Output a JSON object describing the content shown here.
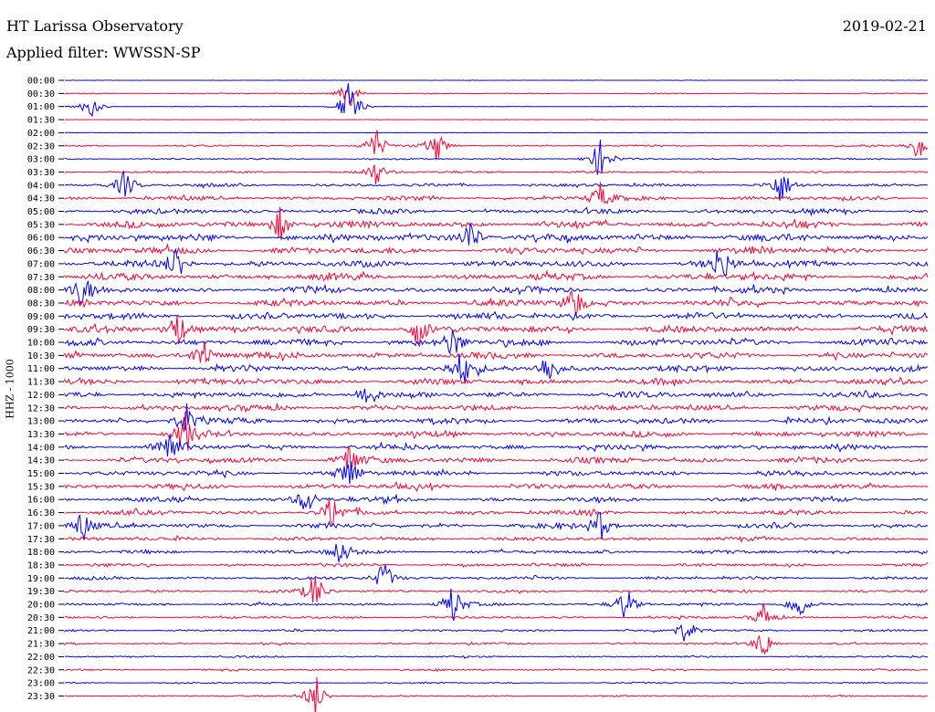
{
  "header": {
    "station": "HT Larissa Observatory",
    "filter": "Applied filter: WWSSN-SP",
    "date": "2019-02-21"
  },
  "channel_label": "HHZ - 1000",
  "colors": {
    "even": "#0000ff",
    "odd": "#ff0033"
  },
  "chart_data": {
    "type": "line",
    "rows": [
      "00:00",
      "00:30",
      "01:00",
      "01:30",
      "02:00",
      "02:30",
      "03:00",
      "03:30",
      "04:00",
      "04:30",
      "05:00",
      "05:30",
      "06:00",
      "06:30",
      "07:00",
      "07:30",
      "08:00",
      "08:30",
      "09:00",
      "09:30",
      "10:00",
      "10:30",
      "11:00",
      "11:30",
      "12:00",
      "12:30",
      "13:00",
      "13:30",
      "14:00",
      "14:30",
      "15:00",
      "15:30",
      "16:00",
      "16:30",
      "17:00",
      "17:30",
      "18:00",
      "18:30",
      "19:00",
      "19:30",
      "20:00",
      "20:30",
      "21:00",
      "21:30",
      "22:00",
      "22:30",
      "23:00",
      "23:30"
    ],
    "noise_level": [
      0.04,
      0.12,
      0.08,
      0.05,
      0.06,
      0.25,
      0.22,
      0.3,
      0.45,
      0.6,
      0.7,
      0.95,
      1.0,
      0.95,
      0.9,
      0.95,
      0.9,
      0.9,
      0.9,
      0.95,
      0.9,
      0.9,
      0.9,
      0.85,
      0.85,
      0.85,
      0.8,
      0.8,
      0.8,
      0.8,
      0.75,
      0.75,
      0.7,
      0.65,
      0.65,
      0.55,
      0.5,
      0.45,
      0.45,
      0.4,
      0.4,
      0.35,
      0.3,
      0.3,
      0.25,
      0.25,
      0.2,
      0.2
    ],
    "events": [
      {
        "row": 1,
        "t": 0.33,
        "amp": 1.2
      },
      {
        "row": 2,
        "t": 0.33,
        "amp": 2.2
      },
      {
        "row": 2,
        "t": 0.03,
        "amp": 1.0
      },
      {
        "row": 5,
        "t": 0.36,
        "amp": 1.5
      },
      {
        "row": 5,
        "t": 0.43,
        "amp": 1.3
      },
      {
        "row": 5,
        "t": 0.99,
        "amp": 1.2
      },
      {
        "row": 6,
        "t": 0.62,
        "amp": 1.5
      },
      {
        "row": 7,
        "t": 0.36,
        "amp": 1.0
      },
      {
        "row": 8,
        "t": 0.07,
        "amp": 1.2
      },
      {
        "row": 8,
        "t": 0.83,
        "amp": 1.4
      },
      {
        "row": 9,
        "t": 0.62,
        "amp": 1.1
      },
      {
        "row": 11,
        "t": 0.25,
        "amp": 1.4
      },
      {
        "row": 12,
        "t": 0.47,
        "amp": 1.6
      },
      {
        "row": 14,
        "t": 0.13,
        "amp": 1.5
      },
      {
        "row": 14,
        "t": 0.76,
        "amp": 1.6
      },
      {
        "row": 16,
        "t": 0.02,
        "amp": 1.2
      },
      {
        "row": 17,
        "t": 0.59,
        "amp": 1.6
      },
      {
        "row": 19,
        "t": 0.13,
        "amp": 1.7
      },
      {
        "row": 19,
        "t": 0.41,
        "amp": 1.4
      },
      {
        "row": 20,
        "t": 0.45,
        "amp": 1.3
      },
      {
        "row": 21,
        "t": 0.16,
        "amp": 1.5
      },
      {
        "row": 22,
        "t": 0.56,
        "amp": 1.4
      },
      {
        "row": 22,
        "t": 0.46,
        "amp": 1.3
      },
      {
        "row": 24,
        "t": 0.35,
        "amp": 1.3
      },
      {
        "row": 26,
        "t": 0.14,
        "amp": 1.3
      },
      {
        "row": 27,
        "t": 0.14,
        "amp": 1.5
      },
      {
        "row": 28,
        "t": 0.12,
        "amp": 1.6
      },
      {
        "row": 29,
        "t": 0.33,
        "amp": 1.3
      },
      {
        "row": 30,
        "t": 0.33,
        "amp": 1.3
      },
      {
        "row": 32,
        "t": 0.28,
        "amp": 1.2
      },
      {
        "row": 33,
        "t": 0.31,
        "amp": 1.3
      },
      {
        "row": 34,
        "t": 0.02,
        "amp": 1.2
      },
      {
        "row": 34,
        "t": 0.62,
        "amp": 1.3
      },
      {
        "row": 36,
        "t": 0.32,
        "amp": 1.1
      },
      {
        "row": 38,
        "t": 0.37,
        "amp": 1.4
      },
      {
        "row": 39,
        "t": 0.29,
        "amp": 1.5
      },
      {
        "row": 40,
        "t": 0.45,
        "amp": 1.6
      },
      {
        "row": 40,
        "t": 0.65,
        "amp": 1.5
      },
      {
        "row": 40,
        "t": 0.85,
        "amp": 1.3
      },
      {
        "row": 41,
        "t": 0.81,
        "amp": 1.1
      },
      {
        "row": 42,
        "t": 0.72,
        "amp": 1.0
      },
      {
        "row": 43,
        "t": 0.81,
        "amp": 1.3
      },
      {
        "row": 47,
        "t": 0.29,
        "amp": 1.8
      }
    ]
  }
}
